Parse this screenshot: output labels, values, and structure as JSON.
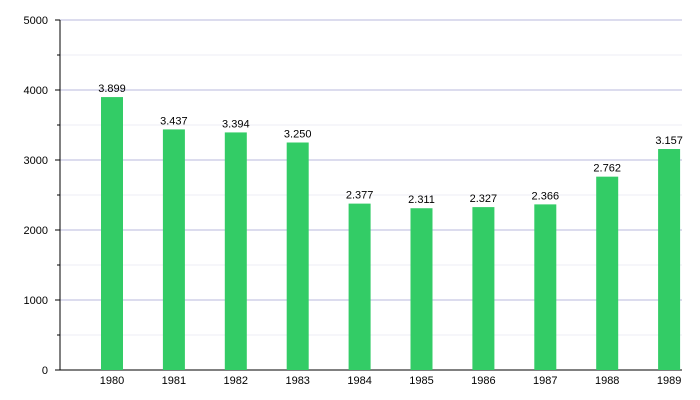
{
  "chart_data": {
    "type": "bar",
    "categories": [
      "1980",
      "1981",
      "1982",
      "1983",
      "1984",
      "1985",
      "1986",
      "1987",
      "1988",
      "1989"
    ],
    "values": [
      3899,
      3437,
      3394,
      3250,
      2377,
      2311,
      2327,
      2366,
      2762,
      3157
    ],
    "value_labels": [
      "3.899",
      "3.437",
      "3.394",
      "3.250",
      "2.377",
      "2.311",
      "2.327",
      "2.366",
      "2.762",
      "3.157"
    ],
    "yticks": [
      0,
      1000,
      2000,
      3000,
      4000,
      5000
    ],
    "ylim": [
      0,
      5000
    ],
    "grid": true,
    "bar_color": "#33cc66",
    "grid_color": "#b9b9dd",
    "minor_grid_color": "#ececf4"
  }
}
